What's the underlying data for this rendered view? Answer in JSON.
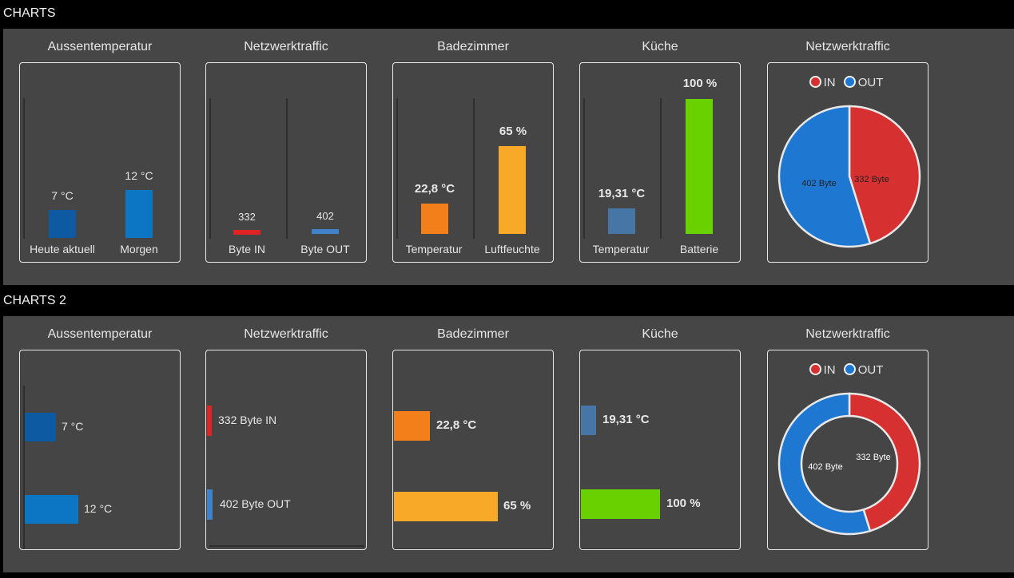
{
  "sections": [
    {
      "title": "CHARTS",
      "widgets": [
        {
          "title": "Aussentemperatur",
          "bars": [
            {
              "label": "Heute aktuell",
              "value_text": "7 °C",
              "color": "#0d5aa3"
            },
            {
              "label": "Morgen",
              "value_text": "12 °C",
              "color": "#0c76c5"
            }
          ]
        },
        {
          "title": "Netzwerktraffic",
          "bars": [
            {
              "label": "Byte IN",
              "value_text": "332",
              "color": "#e02424"
            },
            {
              "label": "Byte OUT",
              "value_text": "402",
              "color": "#3f82c8"
            }
          ]
        },
        {
          "title": "Badezimmer",
          "bars": [
            {
              "label": "Temperatur",
              "value_text": "22,8 °C",
              "color": "#f37f1b"
            },
            {
              "label": "Luftfeuchte",
              "value_text": "65 %",
              "color": "#f8a928"
            }
          ]
        },
        {
          "title": "Küche",
          "bars": [
            {
              "label": "Temperatur",
              "value_text": "19,31 °C",
              "color": "#4676a6"
            },
            {
              "label": "Batterie",
              "value_text": "100 %",
              "color": "#6ad100"
            }
          ]
        },
        {
          "title": "Netzwerktraffic",
          "legend": [
            {
              "name": "IN",
              "color": "#d63031"
            },
            {
              "name": "OUT",
              "color": "#1e78d2"
            }
          ],
          "slices": [
            {
              "label": "332 Byte",
              "value": 332
            },
            {
              "label": "402 Byte",
              "value": 402
            }
          ]
        }
      ]
    },
    {
      "title": "CHARTS 2",
      "widgets": [
        {
          "title": "Aussentemperatur",
          "bars": [
            {
              "value_text": "7 °C"
            },
            {
              "value_text": "12 °C"
            }
          ]
        },
        {
          "title": "Netzwerktraffic",
          "bars": [
            {
              "value_text": "332 Byte IN"
            },
            {
              "value_text": "402 Byte OUT"
            }
          ]
        },
        {
          "title": "Badezimmer",
          "bars": [
            {
              "value_text": "22,8 °C"
            },
            {
              "value_text": "65 %"
            }
          ]
        },
        {
          "title": "Küche",
          "bars": [
            {
              "value_text": "19,31 °C"
            },
            {
              "value_text": "100 %"
            }
          ]
        },
        {
          "title": "Netzwerktraffic",
          "legend": [
            {
              "name": "IN"
            },
            {
              "name": "OUT"
            }
          ],
          "slices": [
            {
              "label": "332 Byte",
              "value": 332
            },
            {
              "label": "402 Byte",
              "value": 402
            }
          ]
        }
      ]
    }
  ],
  "chart_data": [
    {
      "type": "bar",
      "categories": [
        "Heute aktuell",
        "Morgen"
      ],
      "values": [
        7,
        12
      ],
      "unit": "°C"
    },
    {
      "type": "bar",
      "categories": [
        "Byte IN",
        "Byte OUT"
      ],
      "values": [
        332,
        402
      ]
    },
    {
      "type": "bar",
      "categories": [
        "Temperatur",
        "Luftfeuchte"
      ],
      "values": [
        22.8,
        65
      ]
    },
    {
      "type": "bar",
      "categories": [
        "Temperatur",
        "Batterie"
      ],
      "values": [
        19.31,
        100
      ]
    },
    {
      "type": "pie",
      "categories": [
        "IN",
        "OUT"
      ],
      "values": [
        332,
        402
      ],
      "legend": "top"
    },
    {
      "type": "bar",
      "orientation": "horizontal",
      "values": [
        7,
        12
      ],
      "unit": "°C"
    },
    {
      "type": "bar",
      "orientation": "horizontal",
      "values": [
        332,
        402
      ]
    },
    {
      "type": "bar",
      "orientation": "horizontal",
      "values": [
        22.8,
        65
      ]
    },
    {
      "type": "bar",
      "orientation": "horizontal",
      "values": [
        19.31,
        100
      ]
    },
    {
      "type": "pie",
      "donut": true,
      "categories": [
        "IN",
        "OUT"
      ],
      "values": [
        332,
        402
      ],
      "legend": "top"
    }
  ]
}
